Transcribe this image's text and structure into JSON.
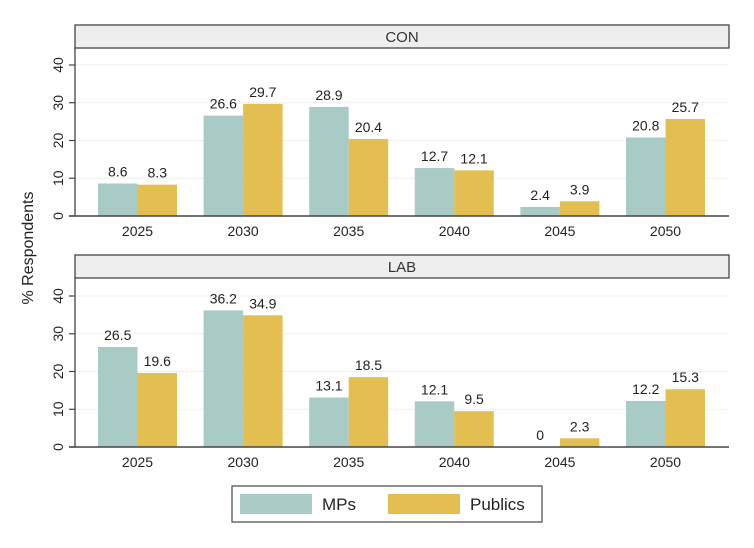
{
  "chart_data": {
    "type": "bar",
    "ylabel": "% Respondents",
    "xlabel": "",
    "ylim": [
      0,
      40
    ],
    "yticks": [
      "0",
      "10",
      "20",
      "30",
      "40"
    ],
    "grid": true,
    "legend_position": "bottom",
    "categories": [
      "2025",
      "2030",
      "2035",
      "2040",
      "2045",
      "2050"
    ],
    "series_names": [
      "MPs",
      "Publics"
    ],
    "colors": {
      "MPs": "#a8cbc6",
      "Publics": "#e2bf50"
    },
    "panels": [
      {
        "title": "CON",
        "series": [
          {
            "name": "MPs",
            "values": [
              8.6,
              26.6,
              28.9,
              12.7,
              2.4,
              20.8
            ],
            "labels": [
              "8.6",
              "26.6",
              "28.9",
              "12.7",
              "2.4",
              "20.8"
            ]
          },
          {
            "name": "Publics",
            "values": [
              8.3,
              29.7,
              20.4,
              12.1,
              3.9,
              25.7
            ],
            "labels": [
              "8.3",
              "29.7",
              "20.4",
              "12.1",
              "3.9",
              "25.7"
            ]
          }
        ]
      },
      {
        "title": "LAB",
        "series": [
          {
            "name": "MPs",
            "values": [
              26.5,
              36.2,
              13.1,
              12.1,
              0,
              12.2
            ],
            "labels": [
              "26.5",
              "36.2",
              "13.1",
              "12.1",
              "0",
              "12.2"
            ]
          },
          {
            "name": "Publics",
            "values": [
              19.6,
              34.9,
              18.5,
              9.5,
              2.3,
              15.3
            ],
            "labels": [
              "19.6",
              "34.9",
              "18.5",
              "9.5",
              "2.3",
              "15.3"
            ]
          }
        ]
      }
    ]
  }
}
